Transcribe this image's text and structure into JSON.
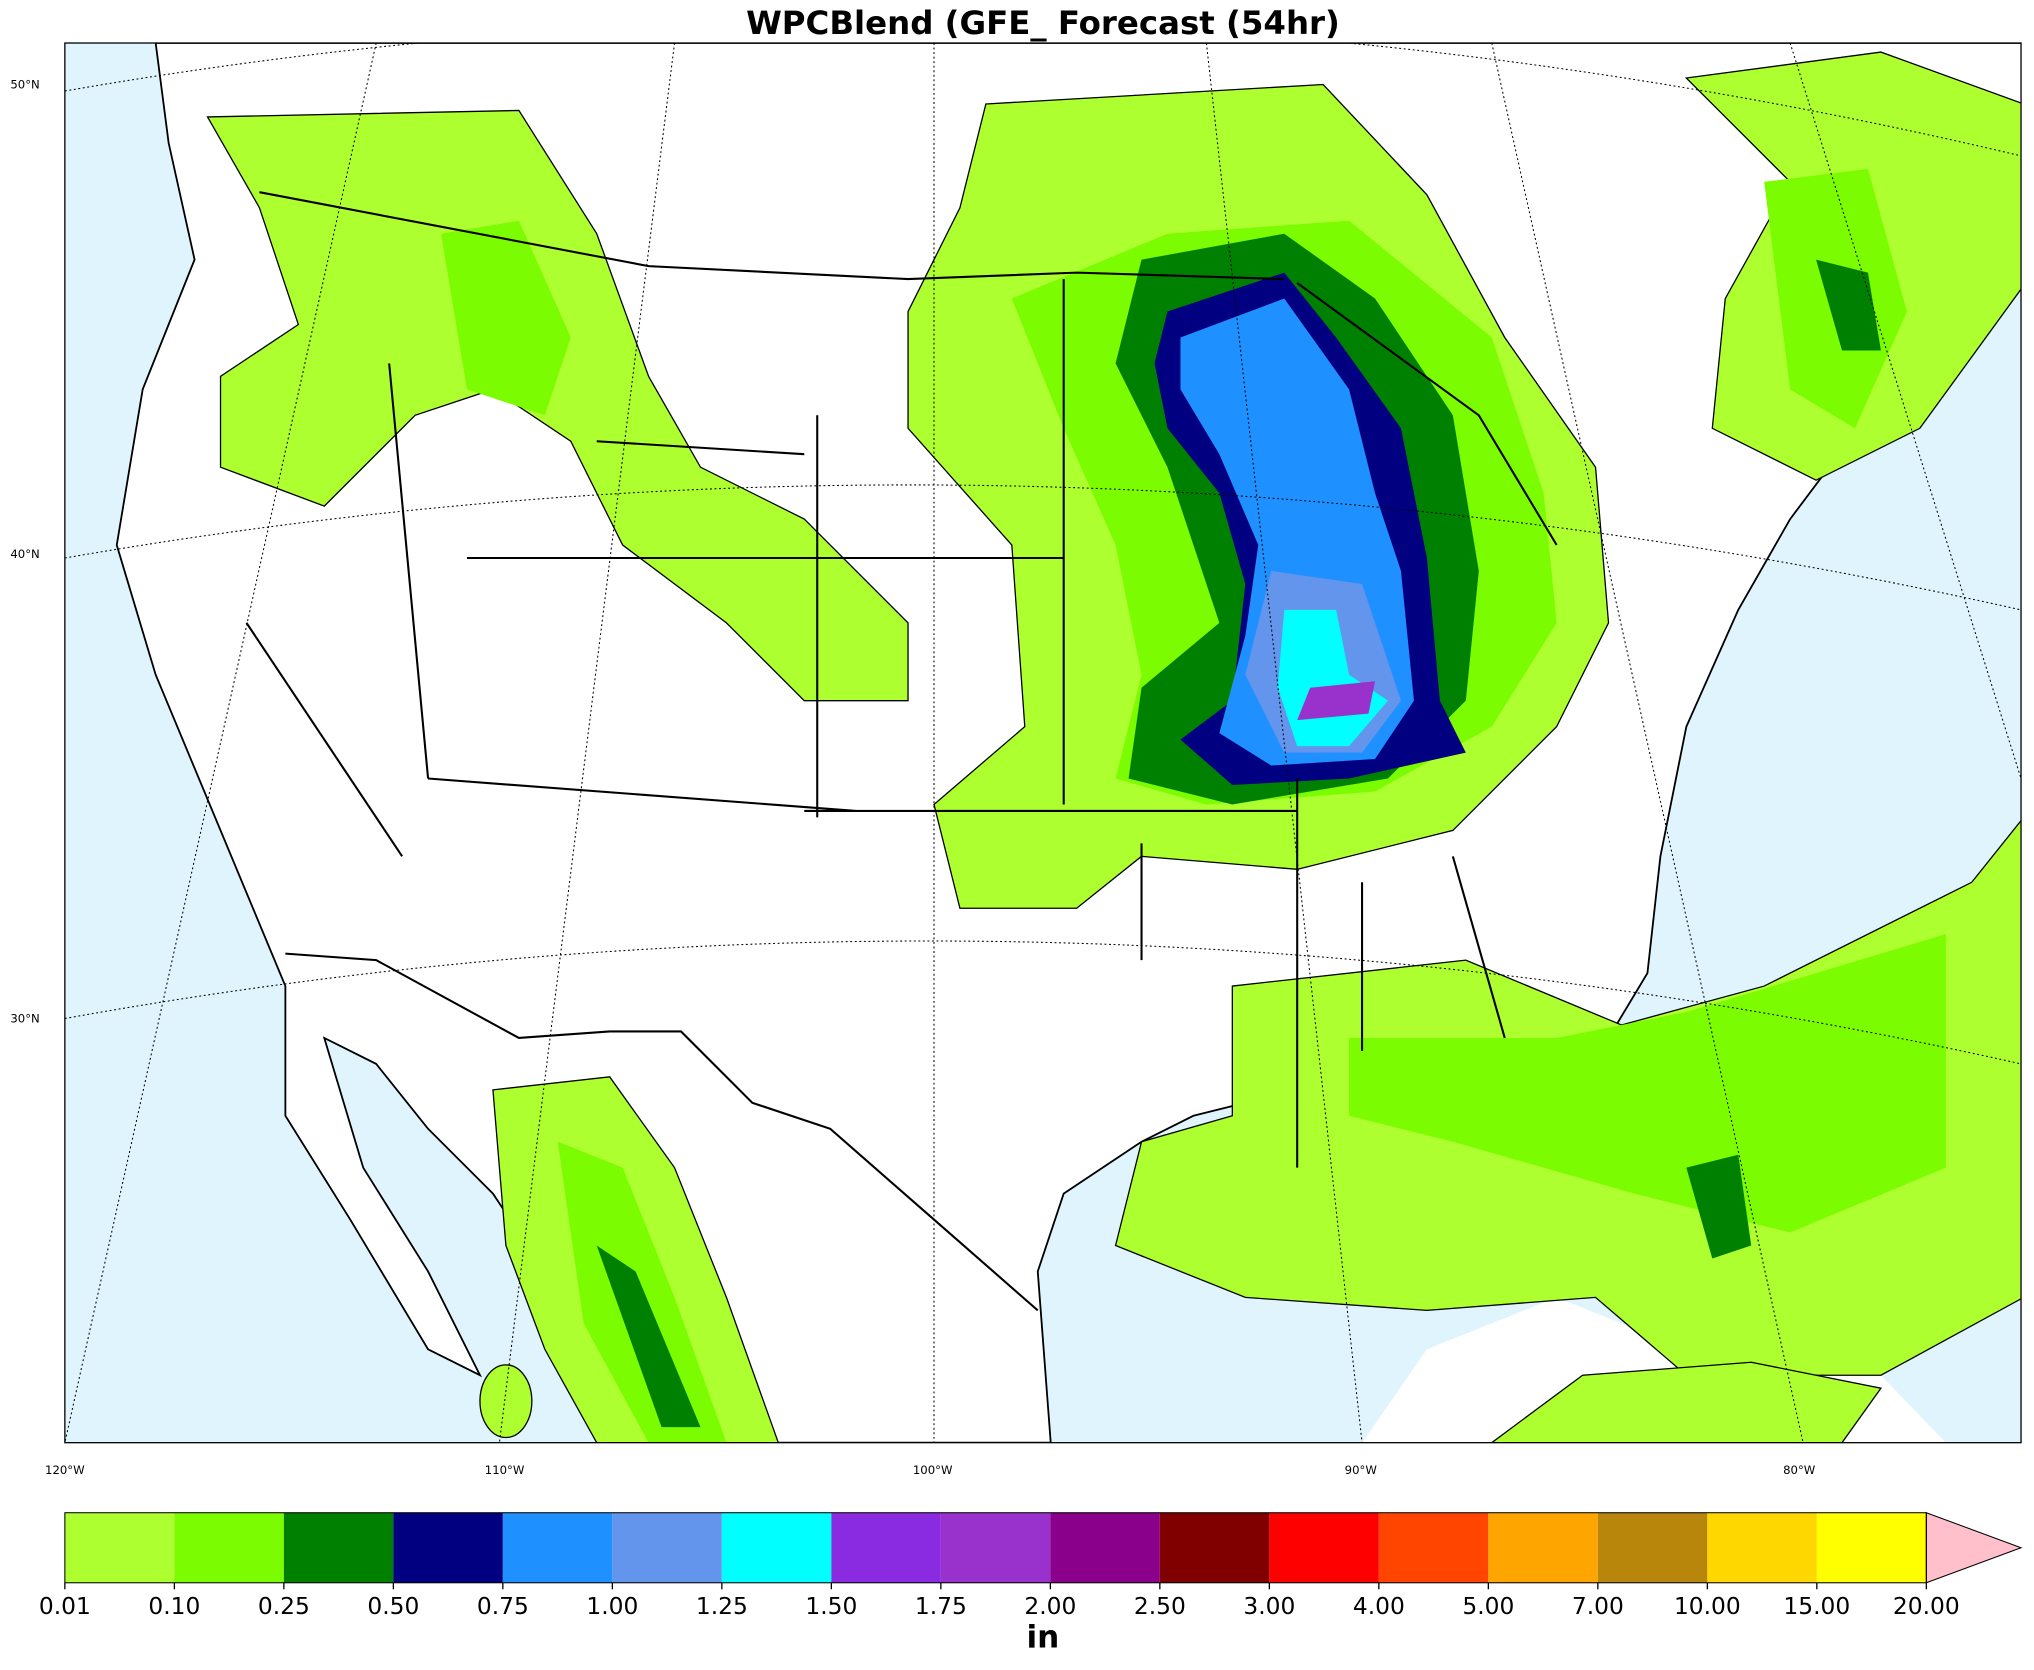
{
  "title": "WPCBlend (GFE_ Forecast (54hr)",
  "lat_labels": [
    "50°N",
    "40°N",
    "30°N"
  ],
  "lon_labels": [
    "120°W",
    "110°W",
    "100°W",
    "90°W",
    "80°W"
  ],
  "colorbar": {
    "label": "in",
    "ticks": [
      {
        "value": 0.01,
        "label": "0.01"
      },
      {
        "value": 0.1,
        "label": "0.10"
      },
      {
        "value": 0.25,
        "label": "0.25"
      },
      {
        "value": 0.5,
        "label": "0.50"
      },
      {
        "value": 0.75,
        "label": "0.75"
      },
      {
        "value": 1,
        "label": "1.00"
      },
      {
        "value": 1.25,
        "label": "1.25"
      },
      {
        "value": 1.5,
        "label": "1.50"
      },
      {
        "value": 1.75,
        "label": "1.75"
      },
      {
        "value": 2,
        "label": "2.00"
      },
      {
        "value": 2.5,
        "label": "2.50"
      },
      {
        "value": 3,
        "label": "3.00"
      },
      {
        "value": 4,
        "label": "4.00"
      },
      {
        "value": 5,
        "label": "5.00"
      },
      {
        "value": 7,
        "label": "7.00"
      },
      {
        "value": 10,
        "label": "10.00"
      },
      {
        "value": 15,
        "label": "15.00"
      },
      {
        "value": 20,
        "label": "20.00"
      }
    ],
    "colors": [
      "#adff2f",
      "#7cfc00",
      "#008000",
      "#000080",
      "#1e90ff",
      "#6495ed",
      "#00ffff",
      "#8a2be2",
      "#9932cc",
      "#8b008b",
      "#800000",
      "#ff0000",
      "#ff4500",
      "#ffa500",
      "#b8860b",
      "#ffd700",
      "#ffff00"
    ],
    "extend_color": "#ffc0cb"
  }
}
